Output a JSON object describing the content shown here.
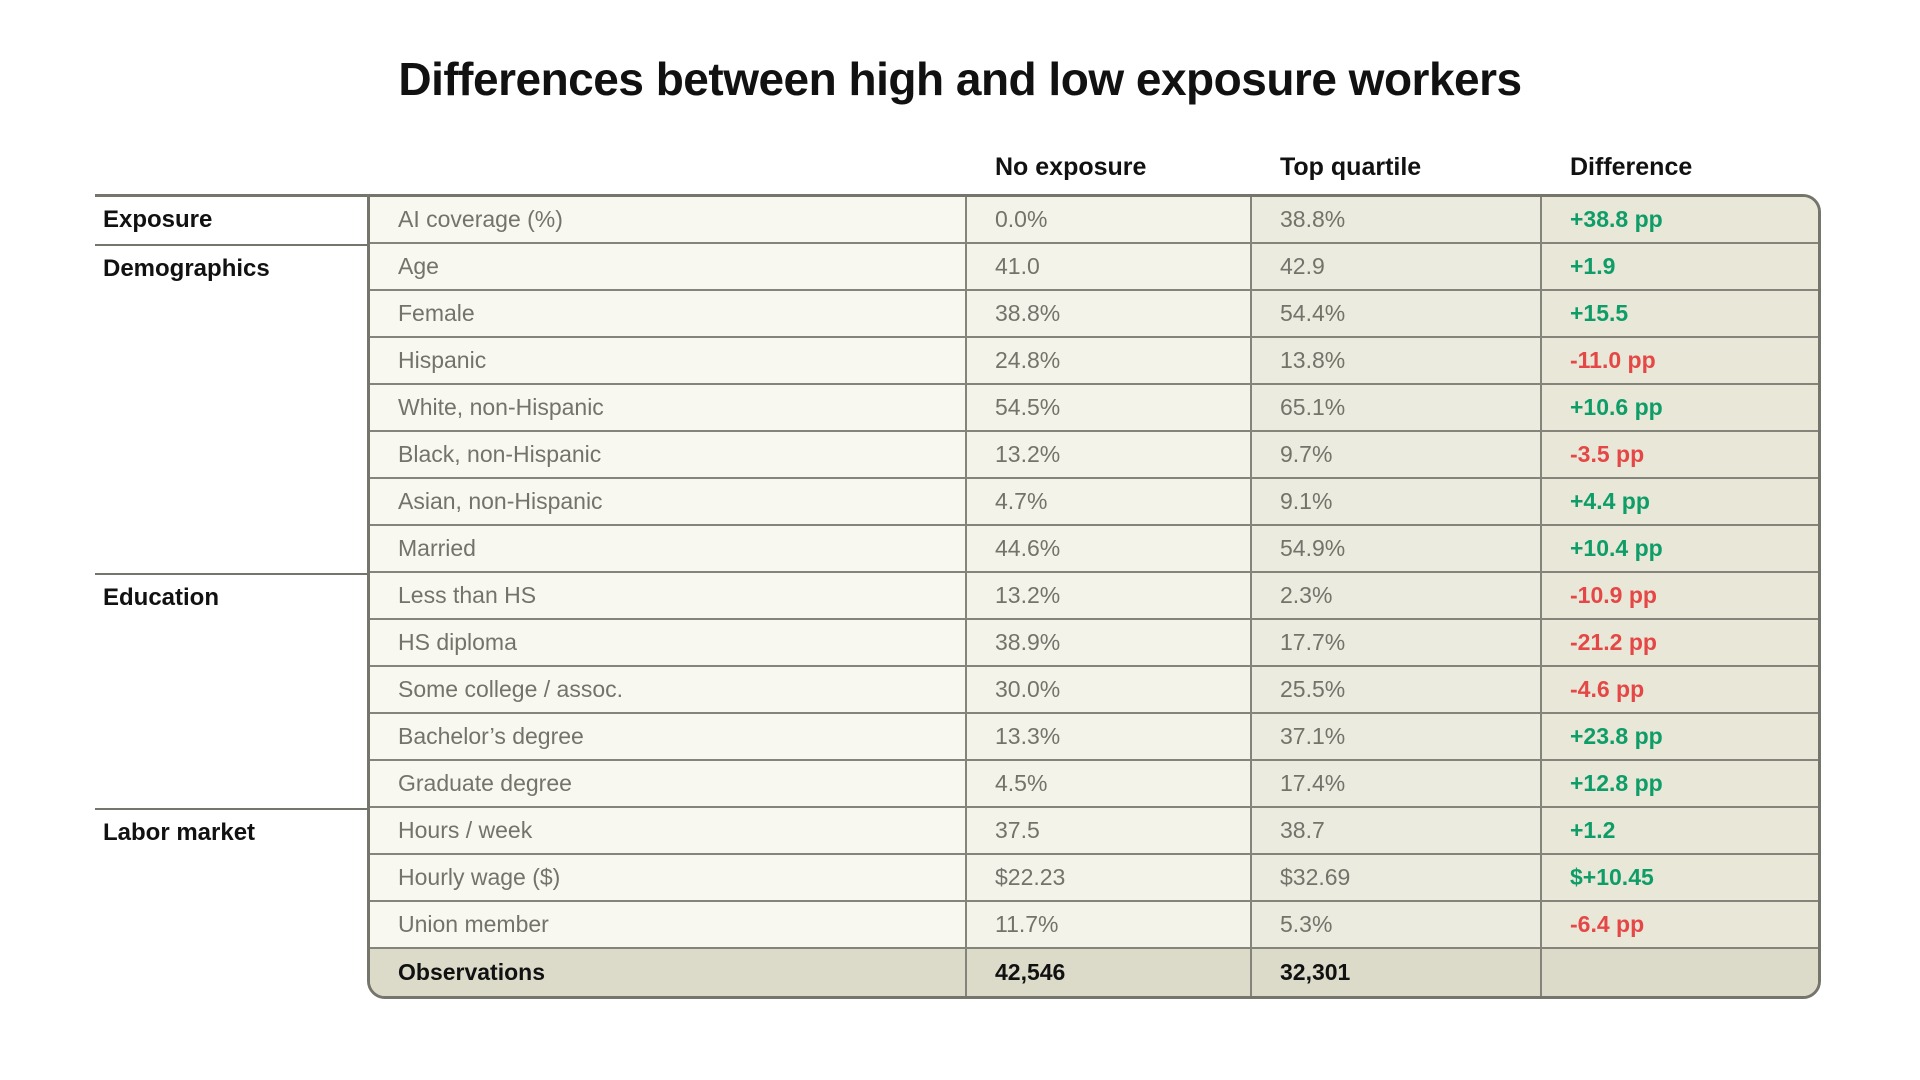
{
  "title": "Differences between high and low exposure workers",
  "colors": {
    "positive": "#0e9d68",
    "negative": "#e54747",
    "border": "#75756c",
    "muted_text": "#74736b",
    "diff_col_bg": "#e8e7d8",
    "observations_row_bg": "#dcdbca"
  },
  "chart_data": {
    "type": "table",
    "title": "Differences between high and low exposure workers",
    "column_headers": [
      "No exposure",
      "Top quartile",
      "Difference"
    ],
    "groups": [
      {
        "label": "Exposure",
        "row_span": 1
      },
      {
        "label": "Demographics",
        "row_span": 7
      },
      {
        "label": "Education",
        "row_span": 5
      },
      {
        "label": "Labor market",
        "row_span": 4
      }
    ],
    "rows": [
      {
        "group": "Exposure",
        "label": "AI coverage (%)",
        "no_exposure": "0.0%",
        "top_quartile": "38.8%",
        "difference": "+38.8 pp",
        "diff_color": "#0e9d68"
      },
      {
        "group": "Demographics",
        "label": "Age",
        "no_exposure": "41.0",
        "top_quartile": "42.9",
        "difference": "+1.9",
        "diff_color": "#0e9d68"
      },
      {
        "group": "Demographics",
        "label": "Female",
        "no_exposure": "38.8%",
        "top_quartile": "54.4%",
        "difference": "+15.5",
        "diff_color": "#0e9d68"
      },
      {
        "group": "Demographics",
        "label": "Hispanic",
        "no_exposure": "24.8%",
        "top_quartile": "13.8%",
        "difference": "-11.0 pp",
        "diff_color": "#e54747"
      },
      {
        "group": "Demographics",
        "label": "White, non-Hispanic",
        "no_exposure": "54.5%",
        "top_quartile": "65.1%",
        "difference": "+10.6 pp",
        "diff_color": "#0e9d68"
      },
      {
        "group": "Demographics",
        "label": "Black, non-Hispanic",
        "no_exposure": "13.2%",
        "top_quartile": "9.7%",
        "difference": "-3.5 pp",
        "diff_color": "#e54747"
      },
      {
        "group": "Demographics",
        "label": "Asian, non-Hispanic",
        "no_exposure": "4.7%",
        "top_quartile": "9.1%",
        "difference": "+4.4 pp",
        "diff_color": "#0e9d68"
      },
      {
        "group": "Demographics",
        "label": "Married",
        "no_exposure": "44.6%",
        "top_quartile": "54.9%",
        "difference": "+10.4 pp",
        "diff_color": "#0e9d68"
      },
      {
        "group": "Education",
        "label": "Less than HS",
        "no_exposure": "13.2%",
        "top_quartile": "2.3%",
        "difference": "-10.9 pp",
        "diff_color": "#e54747"
      },
      {
        "group": "Education",
        "label": "HS diploma",
        "no_exposure": "38.9%",
        "top_quartile": "17.7%",
        "difference": "-21.2 pp",
        "diff_color": "#e54747"
      },
      {
        "group": "Education",
        "label": "Some college / assoc.",
        "no_exposure": "30.0%",
        "top_quartile": "25.5%",
        "difference": "-4.6 pp",
        "diff_color": "#e54747"
      },
      {
        "group": "Education",
        "label": "Bachelor’s degree",
        "no_exposure": "13.3%",
        "top_quartile": "37.1%",
        "difference": "+23.8 pp",
        "diff_color": "#0e9d68"
      },
      {
        "group": "Education",
        "label": "Graduate degree",
        "no_exposure": "4.5%",
        "top_quartile": "17.4%",
        "difference": "+12.8 pp",
        "diff_color": "#0e9d68"
      },
      {
        "group": "Labor market",
        "label": "Hours / week",
        "no_exposure": "37.5",
        "top_quartile": "38.7",
        "difference": "+1.2",
        "diff_color": "#0e9d68"
      },
      {
        "group": "Labor market",
        "label": "Hourly wage ($)",
        "no_exposure": "$22.23",
        "top_quartile": "$32.69",
        "difference": "$+10.45",
        "diff_color": "#0e9d68"
      },
      {
        "group": "Labor market",
        "label": "Union member",
        "no_exposure": "11.7%",
        "top_quartile": "5.3%",
        "difference": "-6.4 pp",
        "diff_color": "#e54747"
      },
      {
        "group": "Labor market",
        "label": "Observations",
        "no_exposure": "42,546",
        "top_quartile": "32,301",
        "difference": "",
        "diff_color": "#111111"
      }
    ]
  }
}
